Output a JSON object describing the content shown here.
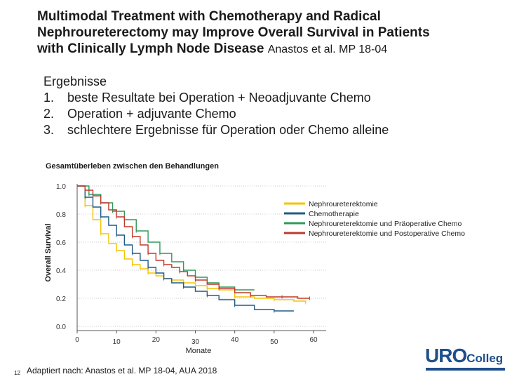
{
  "slide": {
    "title_line1": "Multimodal Treatment with Chemotherapy and Radical",
    "title_line2": "Nephroureterectomy may Improve Overall Survival in Patients",
    "title_line3": "with Clinically Lymph Node Disease",
    "citation": "Anastos et al. MP 18-04",
    "results_heading": "Ergebnisse",
    "results": [
      {
        "num": "1.",
        "text": "beste Resultate bei Operation + Neoadjuvante Chemo"
      },
      {
        "num": "2.",
        "text": "Operation + adjuvante Chemo"
      },
      {
        "num": "3.",
        "text": "schlechtere Ergebnisse für Operation oder Chemo alleine"
      }
    ],
    "footnote": "Adaptiert nach: Anastos et al. MP 18-04, AUA 2018",
    "page_number": "12",
    "logo_text_main": "URO",
    "logo_text_rest": "Colleg",
    "logo_color": "#1f4e8c"
  },
  "chart_data": {
    "type": "line",
    "title": "Gesamtüberleben zwischen den Behandlungen",
    "xlabel": "Monate",
    "ylabel": "Overall Survival",
    "xlim": [
      0,
      60
    ],
    "ylim": [
      0,
      1
    ],
    "x_ticks": [
      "0",
      "10",
      "20",
      "30",
      "40",
      "50",
      "60"
    ],
    "y_ticks": [
      "0.0",
      "0.2",
      "0.4",
      "0.6",
      "0.8",
      "1.0"
    ],
    "grid": "horizontal dotted",
    "legend_position": "right",
    "series": [
      {
        "name": "Nephroureterektomie",
        "color": "#f5c400",
        "x": [
          0,
          2,
          4,
          6,
          8,
          10,
          12,
          14,
          16,
          18,
          20,
          22,
          24,
          27,
          30,
          33,
          36,
          40,
          45,
          50,
          55,
          58
        ],
        "y": [
          1.0,
          0.86,
          0.76,
          0.66,
          0.59,
          0.54,
          0.48,
          0.44,
          0.41,
          0.38,
          0.36,
          0.34,
          0.33,
          0.31,
          0.29,
          0.27,
          0.26,
          0.21,
          0.2,
          0.19,
          0.18,
          0.17
        ]
      },
      {
        "name": "Chemotherapie",
        "color": "#1f5b87",
        "x": [
          0,
          2,
          4,
          6,
          8,
          10,
          12,
          14,
          16,
          18,
          20,
          22,
          24,
          27,
          30,
          33,
          36,
          40,
          45,
          50,
          55
        ],
        "y": [
          1.0,
          0.92,
          0.85,
          0.78,
          0.72,
          0.65,
          0.58,
          0.52,
          0.47,
          0.42,
          0.38,
          0.34,
          0.31,
          0.28,
          0.25,
          0.22,
          0.19,
          0.15,
          0.12,
          0.11,
          0.11
        ]
      },
      {
        "name": "Nephroureterektomie und Präoperative Chemo",
        "color": "#2f9a5a",
        "x": [
          0,
          3,
          6,
          9,
          12,
          15,
          18,
          21,
          24,
          27,
          30,
          33,
          36,
          40,
          45
        ],
        "y": [
          1.0,
          0.94,
          0.88,
          0.82,
          0.76,
          0.68,
          0.6,
          0.52,
          0.46,
          0.4,
          0.35,
          0.31,
          0.28,
          0.26,
          0.26
        ]
      },
      {
        "name": "Nephroureterektomie und Postoperative Chemo",
        "color": "#c0392b",
        "x": [
          0,
          2,
          4,
          6,
          8,
          10,
          12,
          14,
          16,
          18,
          20,
          22,
          24,
          26,
          28,
          30,
          33,
          36,
          40,
          44,
          48,
          52,
          56,
          59
        ],
        "y": [
          1.0,
          0.97,
          0.93,
          0.88,
          0.83,
          0.78,
          0.71,
          0.64,
          0.58,
          0.52,
          0.47,
          0.44,
          0.42,
          0.39,
          0.36,
          0.33,
          0.3,
          0.27,
          0.24,
          0.22,
          0.21,
          0.21,
          0.2,
          0.2
        ]
      }
    ]
  }
}
